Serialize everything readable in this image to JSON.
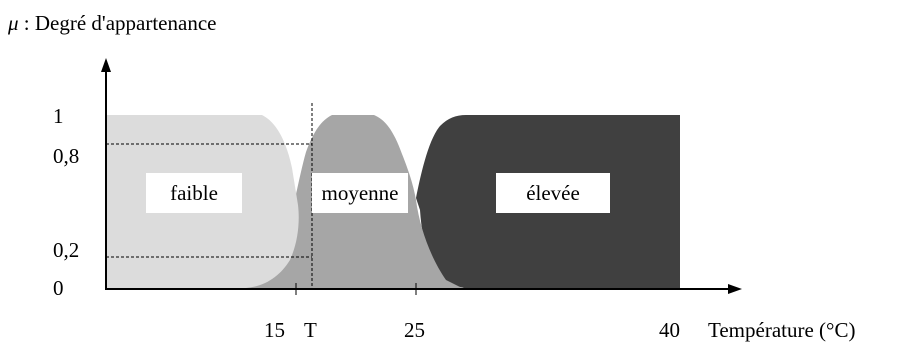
{
  "title": {
    "symbol": "μ",
    "text": " : Degré d'appartenance"
  },
  "y_ticks": [
    "1",
    "0,8",
    "0,2",
    "0"
  ],
  "x_ticks": [
    "15",
    "T",
    "25",
    "40"
  ],
  "x_axis_label": "Température (°C)",
  "sets": [
    {
      "label": "faible",
      "color": "#dcdcdc"
    },
    {
      "label": "moyenne",
      "color": "#a6a6a6"
    },
    {
      "label": "élevée",
      "color": "#404040"
    }
  ]
}
